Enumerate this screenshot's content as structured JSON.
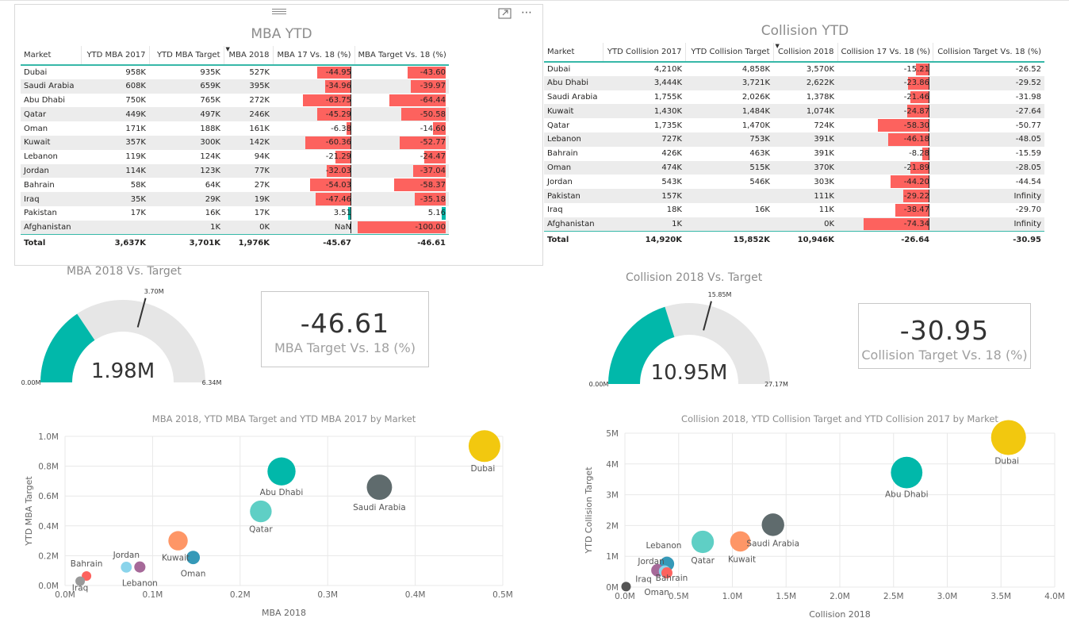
{
  "colors": {
    "teal": "#01b8aa",
    "red": "#fd625e",
    "gauge_bg": "#e6e6e6",
    "header_line": "#37b8a8"
  },
  "mba_table": {
    "title": "MBA YTD",
    "columns": [
      "Market",
      "YTD MBA 2017",
      "YTD MBA Target",
      "MBA 2018",
      "MBA 17 Vs. 18 (%)",
      "MBA Target Vs. 18 (%)"
    ],
    "rows": [
      {
        "market": "Dubai",
        "ytd2017": "958K",
        "target": "935K",
        "y2018": "527K",
        "vs17": "-44.95",
        "vsT": "-43.60",
        "vs17_num": -44.95,
        "vsT_num": -43.6
      },
      {
        "market": "Saudi Arabia",
        "ytd2017": "608K",
        "target": "659K",
        "y2018": "395K",
        "vs17": "-34.96",
        "vsT": "-39.97",
        "vs17_num": -34.96,
        "vsT_num": -39.97
      },
      {
        "market": "Abu Dhabi",
        "ytd2017": "750K",
        "target": "765K",
        "y2018": "272K",
        "vs17": "-63.75",
        "vsT": "-64.44",
        "vs17_num": -63.75,
        "vsT_num": -64.44
      },
      {
        "market": "Qatar",
        "ytd2017": "449K",
        "target": "497K",
        "y2018": "246K",
        "vs17": "-45.29",
        "vsT": "-50.58",
        "vs17_num": -45.29,
        "vsT_num": -50.58
      },
      {
        "market": "Oman",
        "ytd2017": "171K",
        "target": "188K",
        "y2018": "161K",
        "vs17": "-6.38",
        "vsT": "-14.60",
        "vs17_num": -6.38,
        "vsT_num": -14.6
      },
      {
        "market": "Kuwait",
        "ytd2017": "357K",
        "target": "300K",
        "y2018": "142K",
        "vs17": "-60.36",
        "vsT": "-52.77",
        "vs17_num": -60.36,
        "vsT_num": -52.77
      },
      {
        "market": "Lebanon",
        "ytd2017": "119K",
        "target": "124K",
        "y2018": "94K",
        "vs17": "-21.29",
        "vsT": "-24.47",
        "vs17_num": -21.29,
        "vsT_num": -24.47
      },
      {
        "market": "Jordan",
        "ytd2017": "114K",
        "target": "123K",
        "y2018": "77K",
        "vs17": "-32.03",
        "vsT": "-37.04",
        "vs17_num": -32.03,
        "vsT_num": -37.04
      },
      {
        "market": "Bahrain",
        "ytd2017": "58K",
        "target": "64K",
        "y2018": "27K",
        "vs17": "-54.03",
        "vsT": "-58.37",
        "vs17_num": -54.03,
        "vsT_num": -58.37
      },
      {
        "market": "Iraq",
        "ytd2017": "35K",
        "target": "29K",
        "y2018": "19K",
        "vs17": "-47.46",
        "vsT": "-35.18",
        "vs17_num": -47.46,
        "vsT_num": -35.18
      },
      {
        "market": "Pakistan",
        "ytd2017": "17K",
        "target": "16K",
        "y2018": "17K",
        "vs17": "3.51",
        "vsT": "5.16",
        "vs17_num": 3.51,
        "vsT_num": 5.16
      },
      {
        "market": "Afghanistan",
        "ytd2017": "",
        "target": "1K",
        "y2018": "0K",
        "vs17": "NaN",
        "vsT": "-100.00",
        "vs17_num": 0,
        "vsT_num": -100.0
      }
    ],
    "total": {
      "market": "Total",
      "ytd2017": "3,637K",
      "target": "3,701K",
      "y2018": "1,976K",
      "vs17": "-45.67",
      "vsT": "-46.61"
    }
  },
  "col_table": {
    "title": "Collision YTD",
    "columns": [
      "Market",
      "YTD Collision 2017",
      "YTD Collision Target",
      "Collision 2018",
      "Collision 17 Vs. 18 (%)",
      "Collision Target Vs. 18 (%)"
    ],
    "rows": [
      {
        "market": "Dubai",
        "ytd2017": "4,210K",
        "target": "4,858K",
        "y2018": "3,570K",
        "vs17": "-15.21",
        "vsT": "-26.52",
        "vs17_num": -15.21
      },
      {
        "market": "Abu Dhabi",
        "ytd2017": "3,444K",
        "target": "3,721K",
        "y2018": "2,622K",
        "vs17": "-23.86",
        "vsT": "-29.52",
        "vs17_num": -23.86
      },
      {
        "market": "Saudi Arabia",
        "ytd2017": "1,755K",
        "target": "2,026K",
        "y2018": "1,378K",
        "vs17": "-21.46",
        "vsT": "-31.98",
        "vs17_num": -21.46
      },
      {
        "market": "Kuwait",
        "ytd2017": "1,430K",
        "target": "1,484K",
        "y2018": "1,074K",
        "vs17": "-24.87",
        "vsT": "-27.64",
        "vs17_num": -24.87
      },
      {
        "market": "Qatar",
        "ytd2017": "1,735K",
        "target": "1,470K",
        "y2018": "724K",
        "vs17": "-58.30",
        "vsT": "-50.77",
        "vs17_num": -58.3
      },
      {
        "market": "Lebanon",
        "ytd2017": "727K",
        "target": "753K",
        "y2018": "391K",
        "vs17": "-46.18",
        "vsT": "-48.05",
        "vs17_num": -46.18
      },
      {
        "market": "Bahrain",
        "ytd2017": "426K",
        "target": "463K",
        "y2018": "391K",
        "vs17": "-8.28",
        "vsT": "-15.59",
        "vs17_num": -8.28
      },
      {
        "market": "Oman",
        "ytd2017": "474K",
        "target": "515K",
        "y2018": "370K",
        "vs17": "-21.89",
        "vsT": "-28.05",
        "vs17_num": -21.89
      },
      {
        "market": "Jordan",
        "ytd2017": "543K",
        "target": "546K",
        "y2018": "303K",
        "vs17": "-44.20",
        "vsT": "-44.54",
        "vs17_num": -44.2
      },
      {
        "market": "Pakistan",
        "ytd2017": "157K",
        "target": "",
        "y2018": "111K",
        "vs17": "-29.22",
        "vsT": "Infinity",
        "vs17_num": -29.22
      },
      {
        "market": "Iraq",
        "ytd2017": "18K",
        "target": "16K",
        "y2018": "11K",
        "vs17": "-38.47",
        "vsT": "-29.70",
        "vs17_num": -38.47
      },
      {
        "market": "Afghanistan",
        "ytd2017": "1K",
        "target": "",
        "y2018": "0K",
        "vs17": "-74.34",
        "vsT": "Infinity",
        "vs17_num": -74.34
      }
    ],
    "total": {
      "market": "Total",
      "ytd2017": "14,920K",
      "target": "15,852K",
      "y2018": "10,946K",
      "vs17": "-26.64",
      "vsT": "-30.95"
    }
  },
  "mba_gauge": {
    "title": "MBA 2018 Vs. Target",
    "value_label": "1.98M",
    "min_label": "0.00M",
    "max_label": "6.34M",
    "target_label": "3.70M",
    "value": 1.98,
    "min": 0,
    "max": 6.34,
    "target": 3.7
  },
  "col_gauge": {
    "title": "Collision 2018 Vs. Target",
    "value_label": "10.95M",
    "min_label": "0.00M",
    "max_label": "27.17M",
    "target_label": "15.85M",
    "value": 10.95,
    "min": 0,
    "max": 27.17,
    "target": 15.85
  },
  "mba_kpi": {
    "value": "-46.61",
    "label": "MBA Target Vs. 18 (%)"
  },
  "col_kpi": {
    "value": "-30.95",
    "label": "Collision Target Vs. 18 (%)"
  },
  "chart_data": [
    {
      "type": "scatter",
      "title": "MBA 2018, YTD MBA Target and YTD MBA 2017 by Market",
      "xlabel": "MBA 2018",
      "ylabel": "YTD MBA Target",
      "xlim": [
        0,
        0.55
      ],
      "ylim": [
        0,
        1.0
      ],
      "xticks": [
        "0.0M",
        "0.1M",
        "0.2M",
        "0.3M",
        "0.4M",
        "0.5M"
      ],
      "yticks": [
        "0.0M",
        "0.2M",
        "0.4M",
        "0.6M",
        "0.8M",
        "1.0M"
      ],
      "points": [
        {
          "label": "Dubai",
          "x": 0.527,
          "y": 0.935,
          "size": 0.958,
          "color": "#f2c80f"
        },
        {
          "label": "Saudi Arabia",
          "x": 0.395,
          "y": 0.659,
          "size": 0.608,
          "color": "#5f6b6d"
        },
        {
          "label": "Abu Dhabi",
          "x": 0.272,
          "y": 0.765,
          "size": 0.75,
          "color": "#01b8aa"
        },
        {
          "label": "Qatar",
          "x": 0.246,
          "y": 0.497,
          "size": 0.449,
          "color": "#5fcfc5"
        },
        {
          "label": "Oman",
          "x": 0.161,
          "y": 0.188,
          "size": 0.171,
          "color": "#3599b8"
        },
        {
          "label": "Kuwait",
          "x": 0.142,
          "y": 0.3,
          "size": 0.357,
          "color": "#fe9666"
        },
        {
          "label": "Lebanon",
          "x": 0.094,
          "y": 0.124,
          "size": 0.119,
          "color": "#a66999"
        },
        {
          "label": "Jordan",
          "x": 0.077,
          "y": 0.123,
          "size": 0.114,
          "color": "#8ad4eb"
        },
        {
          "label": "Bahrain",
          "x": 0.027,
          "y": 0.064,
          "size": 0.058,
          "color": "#fd625e"
        },
        {
          "label": "Iraq",
          "x": 0.019,
          "y": 0.029,
          "size": 0.035,
          "color": "#999999"
        }
      ]
    },
    {
      "type": "scatter",
      "title": "Collision 2018, YTD Collision Target and YTD Collision 2017 by Market",
      "xlabel": "Collision 2018",
      "ylabel": "YTD Collision Target",
      "xlim": [
        0,
        4.0
      ],
      "ylim": [
        0,
        5
      ],
      "xticks": [
        "0.0M",
        "0.5M",
        "1.0M",
        "1.5M",
        "2.0M",
        "2.5M",
        "3.0M",
        "3.5M",
        "4.0M"
      ],
      "yticks": [
        "0M",
        "1M",
        "2M",
        "3M",
        "4M",
        "5M"
      ],
      "points": [
        {
          "label": "Dubai",
          "x": 3.57,
          "y": 4.858,
          "size": 4.21,
          "color": "#f2c80f"
        },
        {
          "label": "Abu Dhabi",
          "x": 2.622,
          "y": 3.721,
          "size": 3.444,
          "color": "#01b8aa"
        },
        {
          "label": "Saudi Arabia",
          "x": 1.378,
          "y": 2.026,
          "size": 1.755,
          "color": "#5f6b6d"
        },
        {
          "label": "Kuwait",
          "x": 1.074,
          "y": 1.484,
          "size": 1.43,
          "color": "#fe9666"
        },
        {
          "label": "Qatar",
          "x": 0.724,
          "y": 1.47,
          "size": 1.735,
          "color": "#5fcfc5"
        },
        {
          "label": "Jordan",
          "x": 0.303,
          "y": 0.546,
          "size": 0.543,
          "color": "#a66999"
        },
        {
          "label": "Lebanon",
          "x": 0.391,
          "y": 0.753,
          "size": 0.727,
          "color": "#3599b8"
        },
        {
          "label": "Bahrain",
          "x": 0.391,
          "y": 0.463,
          "size": 0.426,
          "color": "#fd625e"
        },
        {
          "label": "Oman",
          "x": 0.37,
          "y": 0.515,
          "size": 0.474,
          "color": "#8ad4eb"
        },
        {
          "label": "Iraq",
          "x": 0.011,
          "y": 0.016,
          "size": 0.018,
          "color": "#555555"
        }
      ]
    }
  ]
}
